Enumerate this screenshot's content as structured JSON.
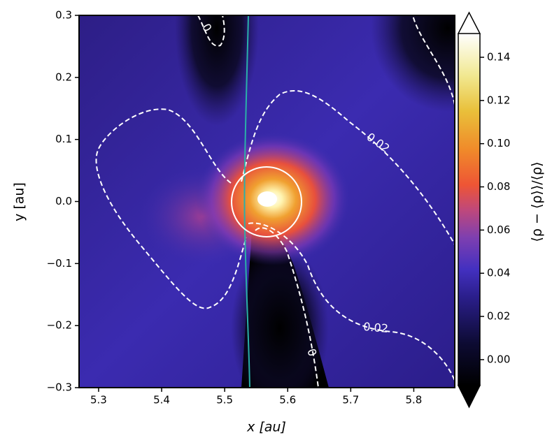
{
  "chart_data": {
    "type": "heatmap",
    "xlabel": "x [au]",
    "ylabel": "y [au]",
    "colorbar_label": "⟨ρ − ⟨ρ⟩⟩/⟨ρ⟩",
    "xlim": [
      5.269,
      5.865
    ],
    "ylim": [
      -0.3,
      0.3
    ],
    "xticks": [
      5.3,
      5.4,
      5.5,
      5.6,
      5.7,
      5.8
    ],
    "yticks": [
      {
        "value": -0.3,
        "label": "−0.3"
      },
      {
        "value": -0.2,
        "label": "−0.2"
      },
      {
        "value": -0.1,
        "label": "−0.1"
      },
      {
        "value": 0,
        "label": "0.0"
      },
      0.1,
      0.2,
      0.3
    ],
    "clim": [
      -0.012,
      0.151
    ],
    "cticks": [
      {
        "value": 0,
        "label": "0.00"
      },
      0.02,
      0.04,
      0.06,
      0.08,
      {
        "value": 0.1,
        "label": "0.10"
      },
      0.12,
      0.14
    ],
    "contour_levels": [
      0,
      0.02
    ]
  }
}
